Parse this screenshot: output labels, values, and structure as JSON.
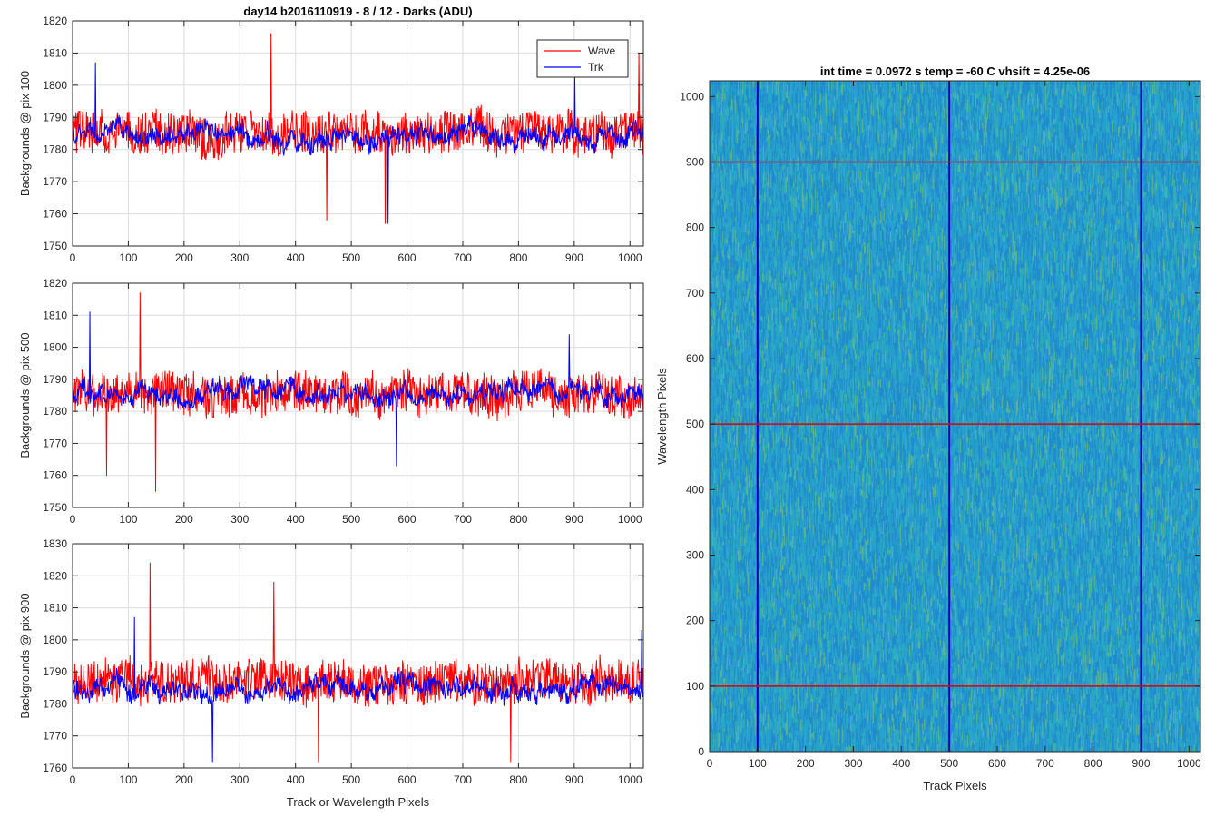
{
  "chart_data": [
    {
      "type": "line",
      "title": "day14 b2016110919 - 8 / 12 - Darks (ADU)",
      "xlabel": "",
      "ylabel": "Backgrounds @ pix 100",
      "xlim": [
        0,
        1024
      ],
      "ylim": [
        1750,
        1820
      ],
      "xticks": [
        0,
        100,
        200,
        300,
        400,
        500,
        600,
        700,
        800,
        900,
        1000
      ],
      "yticks": [
        1750,
        1760,
        1770,
        1780,
        1790,
        1800,
        1810,
        1820
      ],
      "grid": true,
      "legend": "top-right",
      "series": [
        {
          "name": "Wave",
          "color": "#ff0000",
          "mean": 1785,
          "amplitude": 9,
          "notable_points": [
            [
              355,
              1816
            ],
            [
              455,
              1758
            ],
            [
              560,
              1757
            ],
            [
              1015,
              1810
            ]
          ]
        },
        {
          "name": "Trk",
          "color": "#0000ff",
          "mean": 1784,
          "amplitude": 7,
          "notable_points": [
            [
              40,
              1807
            ],
            [
              565,
              1757
            ],
            [
              900,
              1803
            ]
          ]
        }
      ]
    },
    {
      "type": "line",
      "title": "",
      "xlabel": "",
      "ylabel": "Backgrounds @ pix 500",
      "xlim": [
        0,
        1024
      ],
      "ylim": [
        1750,
        1820
      ],
      "xticks": [
        0,
        100,
        200,
        300,
        400,
        500,
        600,
        700,
        800,
        900,
        1000
      ],
      "yticks": [
        1750,
        1760,
        1770,
        1780,
        1790,
        1800,
        1810,
        1820
      ],
      "grid": true,
      "series": [
        {
          "name": "Wave",
          "color": "#ff0000",
          "mean": 1786,
          "amplitude": 9,
          "notable_points": [
            [
              120,
              1817
            ],
            [
              148,
              1755
            ],
            [
              60,
              1760
            ]
          ]
        },
        {
          "name": "Trk",
          "color": "#0000ff",
          "mean": 1786,
          "amplitude": 7,
          "notable_points": [
            [
              30,
              1811
            ],
            [
              580,
              1763
            ],
            [
              890,
              1804
            ]
          ]
        }
      ]
    },
    {
      "type": "line",
      "title": "",
      "xlabel": "Track or Wavelength Pixels",
      "ylabel": "Backgrounds @ pix 900",
      "xlim": [
        0,
        1024
      ],
      "ylim": [
        1760,
        1830
      ],
      "xticks": [
        0,
        100,
        200,
        300,
        400,
        500,
        600,
        700,
        800,
        900,
        1000
      ],
      "yticks": [
        1760,
        1770,
        1780,
        1790,
        1800,
        1810,
        1820,
        1830
      ],
      "grid": true,
      "series": [
        {
          "name": "Wave",
          "color": "#ff0000",
          "mean": 1787,
          "amplitude": 9,
          "notable_points": [
            [
              138,
              1824
            ],
            [
              360,
              1818
            ],
            [
              440,
              1762
            ],
            [
              785,
              1762
            ]
          ]
        },
        {
          "name": "Trk",
          "color": "#0000ff",
          "mean": 1785,
          "amplitude": 7,
          "notable_points": [
            [
              110,
              1807
            ],
            [
              250,
              1762
            ],
            [
              1020,
              1803
            ]
          ]
        }
      ]
    },
    {
      "type": "heatmap",
      "title": "int time = 0.0972 s    temp = -60 C    vhsift = 4.25e-06",
      "xlabel": "Track Pixels",
      "ylabel": "Wavelength Pixels",
      "xlim": [
        0,
        1024
      ],
      "ylim": [
        0,
        1024
      ],
      "xticks": [
        0,
        100,
        200,
        300,
        400,
        500,
        600,
        700,
        800,
        900,
        1000
      ],
      "yticks": [
        0,
        100,
        200,
        300,
        400,
        500,
        600,
        700,
        800,
        900,
        1000
      ],
      "colormap": "parula",
      "vertical_markers": {
        "color": "#0000cc",
        "x": [
          100,
          500,
          900
        ]
      },
      "horizontal_markers": {
        "color": "#e00000",
        "y": [
          100,
          500,
          900
        ]
      }
    }
  ]
}
